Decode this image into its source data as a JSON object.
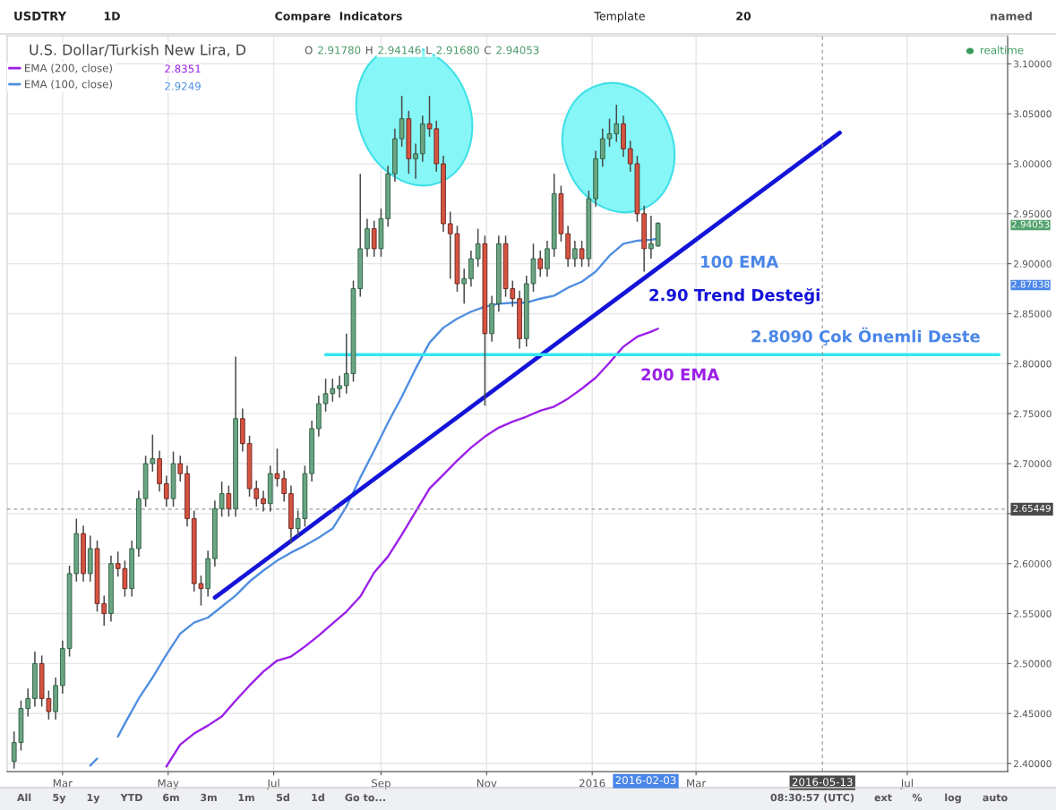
{
  "chart_data": {
    "type": "candlestick",
    "title": "U.S. Dollar/Turkish New Lira, D",
    "x": [
      "2015-02-01",
      "2015-02-05",
      "2015-02-09",
      "2015-02-13",
      "2015-02-17",
      "2015-02-21",
      "2015-02-25",
      "2015-03-01",
      "2015-03-05",
      "2015-03-09",
      "2015-03-13",
      "2015-03-17",
      "2015-03-21",
      "2015-03-25",
      "2015-03-29",
      "2015-04-02",
      "2015-04-06",
      "2015-04-10",
      "2015-04-14",
      "2015-04-18",
      "2015-04-22",
      "2015-04-26",
      "2015-04-30",
      "2015-05-04",
      "2015-05-08",
      "2015-05-12",
      "2015-05-16",
      "2015-05-20",
      "2015-05-24",
      "2015-05-28",
      "2015-06-01",
      "2015-06-05",
      "2015-06-09",
      "2015-06-13",
      "2015-06-17",
      "2015-06-21",
      "2015-06-25",
      "2015-06-29",
      "2015-07-03",
      "2015-07-07",
      "2015-07-11",
      "2015-07-15",
      "2015-07-19",
      "2015-07-23",
      "2015-07-27",
      "2015-07-31",
      "2015-08-04",
      "2015-08-08",
      "2015-08-12",
      "2015-08-16",
      "2015-08-20",
      "2015-08-24",
      "2015-08-28",
      "2015-09-01",
      "2015-09-05",
      "2015-09-09",
      "2015-09-13",
      "2015-09-17",
      "2015-09-21",
      "2015-09-25",
      "2015-09-29",
      "2015-10-03",
      "2015-10-07",
      "2015-10-11",
      "2015-10-15",
      "2015-10-19",
      "2015-10-23",
      "2015-10-27",
      "2015-10-31",
      "2015-11-04",
      "2015-11-08",
      "2015-11-12",
      "2015-11-16",
      "2015-11-20",
      "2015-11-24",
      "2015-11-28",
      "2015-12-02",
      "2015-12-06",
      "2015-12-10",
      "2015-12-14",
      "2015-12-18",
      "2015-12-22",
      "2015-12-26",
      "2015-12-30",
      "2016-01-03",
      "2016-01-07",
      "2016-01-11",
      "2016-01-15",
      "2016-01-19",
      "2016-01-23",
      "2016-01-27",
      "2016-01-31",
      "2016-02-04",
      "2016-02-08"
    ],
    "ohlc": [
      [
        2.402,
        2.432,
        2.395,
        2.421
      ],
      [
        2.421,
        2.463,
        2.413,
        2.455
      ],
      [
        2.455,
        2.475,
        2.447,
        2.465
      ],
      [
        2.465,
        2.512,
        2.457,
        2.5
      ],
      [
        2.5,
        2.508,
        2.457,
        2.465
      ],
      [
        2.465,
        2.473,
        2.444,
        2.452
      ],
      [
        2.452,
        2.486,
        2.444,
        2.478
      ],
      [
        2.478,
        2.523,
        2.47,
        2.515
      ],
      [
        2.515,
        2.598,
        2.507,
        2.59
      ],
      [
        2.59,
        2.645,
        2.582,
        2.63
      ],
      [
        2.63,
        2.638,
        2.582,
        2.59
      ],
      [
        2.59,
        2.628,
        2.582,
        2.615
      ],
      [
        2.615,
        2.623,
        2.552,
        2.56
      ],
      [
        2.56,
        2.568,
        2.538,
        2.55
      ],
      [
        2.55,
        2.608,
        2.542,
        2.6
      ],
      [
        2.6,
        2.612,
        2.587,
        2.595
      ],
      [
        2.595,
        2.603,
        2.567,
        2.575
      ],
      [
        2.575,
        2.623,
        2.567,
        2.615
      ],
      [
        2.615,
        2.673,
        2.607,
        2.665
      ],
      [
        2.665,
        2.708,
        2.657,
        2.7
      ],
      [
        2.7,
        2.729,
        2.692,
        2.705
      ],
      [
        2.705,
        2.713,
        2.672,
        2.68
      ],
      [
        2.68,
        2.688,
        2.657,
        2.665
      ],
      [
        2.665,
        2.712,
        2.657,
        2.7
      ],
      [
        2.7,
        2.708,
        2.682,
        2.69
      ],
      [
        2.69,
        2.698,
        2.637,
        2.645
      ],
      [
        2.645,
        2.653,
        2.572,
        2.58
      ],
      [
        2.58,
        2.588,
        2.558,
        2.575
      ],
      [
        2.575,
        2.613,
        2.567,
        2.605
      ],
      [
        2.605,
        2.663,
        2.597,
        2.655
      ],
      [
        2.655,
        2.682,
        2.647,
        2.67
      ],
      [
        2.67,
        2.678,
        2.647,
        2.655
      ],
      [
        2.655,
        2.807,
        2.647,
        2.745
      ],
      [
        2.745,
        2.755,
        2.712,
        2.72
      ],
      [
        2.72,
        2.728,
        2.667,
        2.675
      ],
      [
        2.675,
        2.683,
        2.657,
        2.665
      ],
      [
        2.665,
        2.673,
        2.652,
        2.66
      ],
      [
        2.66,
        2.698,
        2.652,
        2.69
      ],
      [
        2.69,
        2.715,
        2.677,
        2.685
      ],
      [
        2.685,
        2.693,
        2.662,
        2.67
      ],
      [
        2.67,
        2.678,
        2.62,
        2.635
      ],
      [
        2.635,
        2.653,
        2.627,
        2.645
      ],
      [
        2.645,
        2.698,
        2.637,
        2.69
      ],
      [
        2.69,
        2.743,
        2.682,
        2.735
      ],
      [
        2.735,
        2.768,
        2.727,
        2.76
      ],
      [
        2.76,
        2.785,
        2.752,
        2.77
      ],
      [
        2.77,
        2.785,
        2.762,
        2.775
      ],
      [
        2.775,
        2.788,
        2.766,
        2.778
      ],
      [
        2.778,
        2.83,
        2.77,
        2.79
      ],
      [
        2.79,
        2.883,
        2.782,
        2.875
      ],
      [
        2.875,
        2.99,
        2.867,
        2.915
      ],
      [
        2.915,
        2.945,
        2.907,
        2.935
      ],
      [
        2.935,
        2.943,
        2.907,
        2.915
      ],
      [
        2.915,
        2.955,
        2.907,
        2.945
      ],
      [
        2.945,
        2.998,
        2.937,
        2.99
      ],
      [
        2.99,
        3.035,
        2.982,
        3.025
      ],
      [
        3.025,
        3.068,
        3.017,
        3.045
      ],
      [
        3.045,
        3.053,
        2.99,
        3.005
      ],
      [
        3.005,
        3.02,
        2.985,
        3.01
      ],
      [
        3.01,
        3.048,
        3.002,
        3.04
      ],
      [
        3.04,
        3.068,
        3.027,
        3.035
      ],
      [
        3.035,
        3.043,
        2.992,
        3.0
      ],
      [
        3.0,
        3.008,
        2.932,
        2.94
      ],
      [
        2.94,
        2.952,
        2.885,
        2.93
      ],
      [
        2.93,
        2.938,
        2.872,
        2.88
      ],
      [
        2.88,
        2.895,
        2.86,
        2.885
      ],
      [
        2.885,
        2.913,
        2.877,
        2.905
      ],
      [
        2.905,
        2.935,
        2.897,
        2.92
      ],
      [
        2.92,
        2.928,
        2.758,
        2.83
      ],
      [
        2.83,
        2.868,
        2.822,
        2.86
      ],
      [
        2.86,
        2.928,
        2.852,
        2.92
      ],
      [
        2.92,
        2.928,
        2.867,
        2.875
      ],
      [
        2.875,
        2.883,
        2.857,
        2.865
      ],
      [
        2.865,
        2.873,
        2.815,
        2.825
      ],
      [
        2.825,
        2.888,
        2.817,
        2.88
      ],
      [
        2.88,
        2.92,
        2.872,
        2.905
      ],
      [
        2.905,
        2.913,
        2.887,
        2.895
      ],
      [
        2.895,
        2.923,
        2.887,
        2.915
      ],
      [
        2.915,
        2.99,
        2.907,
        2.97
      ],
      [
        2.97,
        2.978,
        2.922,
        2.93
      ],
      [
        2.93,
        2.938,
        2.897,
        2.905
      ],
      [
        2.905,
        2.923,
        2.897,
        2.915
      ],
      [
        2.915,
        2.923,
        2.897,
        2.905
      ],
      [
        2.905,
        2.973,
        2.897,
        2.965
      ],
      [
        2.965,
        3.013,
        2.957,
        3.005
      ],
      [
        3.005,
        3.035,
        2.997,
        3.025
      ],
      [
        3.025,
        3.045,
        3.017,
        3.03
      ],
      [
        3.03,
        3.059,
        3.022,
        3.04
      ],
      [
        3.04,
        3.048,
        3.007,
        3.015
      ],
      [
        3.015,
        3.023,
        2.992,
        3.0
      ],
      [
        3.0,
        3.008,
        2.942,
        2.95
      ],
      [
        2.95,
        2.958,
        2.892,
        2.915
      ],
      [
        2.915,
        2.948,
        2.905,
        2.92
      ],
      [
        2.9178,
        2.94146,
        2.9168,
        2.94053
      ]
    ],
    "series": [
      {
        "name": "EMA (200, close)",
        "type": "line",
        "color": "#9b1fe8",
        "x": [
          "2015-04-30",
          "2015-05-08",
          "2015-05-16",
          "2015-05-24",
          "2015-06-01",
          "2015-06-09",
          "2015-06-17",
          "2015-06-25",
          "2015-07-03",
          "2015-07-11",
          "2015-07-19",
          "2015-07-27",
          "2015-08-04",
          "2015-08-12",
          "2015-08-20",
          "2015-08-28",
          "2015-09-05",
          "2015-09-13",
          "2015-09-21",
          "2015-09-29",
          "2015-10-07",
          "2015-10-15",
          "2015-10-23",
          "2015-10-31",
          "2015-11-08",
          "2015-11-16",
          "2015-11-24",
          "2015-12-02",
          "2015-12-10",
          "2015-12-18",
          "2015-12-26",
          "2016-01-03",
          "2016-01-11",
          "2016-01-19",
          "2016-01-27",
          "2016-02-04",
          "2016-02-08"
        ],
        "values": [
          2.397,
          2.419,
          2.43,
          2.438,
          2.447,
          2.463,
          2.478,
          2.492,
          2.503,
          2.507,
          2.517,
          2.528,
          2.54,
          2.552,
          2.567,
          2.591,
          2.607,
          2.629,
          2.652,
          2.675,
          2.689,
          2.703,
          2.716,
          2.727,
          2.736,
          2.742,
          2.747,
          2.753,
          2.757,
          2.765,
          2.775,
          2.786,
          2.801,
          2.817,
          2.827,
          2.832,
          2.835
        ]
      },
      {
        "name": "EMA (100, close)",
        "type": "line",
        "color": "#4f8ee0",
        "x": [
          "2015-03-17",
          "2015-03-21",
          "2015-03-27",
          "2015-04-02",
          "2015-04-06",
          "2015-04-14",
          "2015-04-22",
          "2015-04-30",
          "2015-05-08",
          "2015-05-16",
          "2015-05-24",
          "2015-06-01",
          "2015-06-09",
          "2015-06-17",
          "2015-06-25",
          "2015-07-03",
          "2015-07-11",
          "2015-07-19",
          "2015-07-27",
          "2015-08-04",
          "2015-08-12",
          "2015-08-20",
          "2015-08-28",
          "2015-09-05",
          "2015-09-13",
          "2015-09-21",
          "2015-09-29",
          "2015-10-07",
          "2015-10-15",
          "2015-10-23",
          "2015-10-31",
          "2015-11-08",
          "2015-11-16",
          "2015-11-24",
          "2015-12-02",
          "2015-12-10",
          "2015-12-18",
          "2015-12-26",
          "2016-01-03",
          "2016-01-11",
          "2016-01-19",
          "2016-01-27",
          "2016-02-04",
          "2016-02-08"
        ],
        "values": [
          2.398,
          2.405,
          null,
          2.427,
          2.44,
          2.465,
          2.486,
          2.509,
          2.53,
          2.541,
          2.546,
          2.557,
          2.568,
          2.582,
          2.593,
          2.603,
          2.611,
          2.618,
          2.626,
          2.635,
          2.657,
          2.686,
          2.713,
          2.741,
          2.767,
          2.795,
          2.821,
          2.836,
          2.845,
          2.852,
          2.857,
          2.86,
          2.861,
          2.861,
          2.865,
          2.868,
          2.876,
          2.882,
          2.892,
          2.908,
          2.92,
          2.923,
          2.924,
          2.925
        ]
      },
      {
        "type": "line",
        "color": "#1414d8",
        "x": [
          "2015-05-28",
          "2016-05-23"
        ],
        "values": [
          2.566,
          3.031
        ]
      },
      {
        "type": "line",
        "color": "#33e6f0",
        "x": [
          "2015-07-31",
          "2016-08-23"
        ],
        "values": [
          2.809,
          2.809
        ]
      }
    ],
    "xlim": [
      "2015-01-28",
      "2016-08-28"
    ],
    "xticks": [
      {
        "value": "2015-03-01",
        "label": "Mar"
      },
      {
        "value": "2015-05-01",
        "label": "May"
      },
      {
        "value": "2015-07-01",
        "label": "Jul"
      },
      {
        "value": "2015-09-01",
        "label": "Sep"
      },
      {
        "value": "2015-11-01",
        "label": "Nov"
      },
      {
        "value": "2016-01-01",
        "label": "2016"
      },
      {
        "value": "2016-03-01",
        "label": "Mar"
      },
      {
        "value": "2016-07-01",
        "label": "Jul"
      }
    ],
    "ylim": [
      2.392,
      3.128
    ],
    "yticks": [
      {
        "value": 2.4,
        "label": "2.40000"
      },
      {
        "value": 2.45,
        "label": "2.45000"
      },
      {
        "value": 2.5,
        "label": "2.50000"
      },
      {
        "value": 2.55,
        "label": "2.55000"
      },
      {
        "value": 2.6,
        "label": "2.60000"
      },
      {
        "value": 2.65,
        "label": null
      },
      {
        "value": 2.7,
        "label": "2.70000"
      },
      {
        "value": 2.75,
        "label": "2.75000"
      },
      {
        "value": 2.8,
        "label": "2.80000"
      },
      {
        "value": 2.85,
        "label": "2.85000"
      },
      {
        "value": 2.9,
        "label": "2.90000"
      },
      {
        "value": 2.95,
        "label": "2.95000"
      },
      {
        "value": 3.0,
        "label": "3.00000"
      },
      {
        "value": 3.05,
        "label": "3.05000"
      },
      {
        "value": 3.1,
        "label": "3.10000"
      }
    ],
    "grid": true,
    "legend": "top left",
    "ref_lines": [
      {
        "axis": "x",
        "value": "2016-05-13",
        "label": "2016-05-13",
        "line_style": "dashed",
        "color": "#9a9a9a"
      },
      {
        "axis": "y",
        "value": 2.65449,
        "label": "2.65449",
        "line_style": "dashed",
        "color": "#9a9a9a"
      }
    ],
    "annotations": [
      "O 2.91780 H 2.94146 L 2.91680 C 2.94053",
      "2.8351",
      "2.9249",
      "realtime",
      "USDTRY",
      "1D",
      "Compare",
      "Indicators",
      "Template",
      "20",
      "named",
      "All",
      "5y",
      "1y",
      "YTD",
      "6m",
      "3m",
      "1m",
      "5d",
      "1d",
      "Go to...",
      "08:30:57 (UTC)",
      "ext",
      "%",
      "log",
      "auto",
      "100 EMA",
      "2.90 Trend Desteği",
      "2.8090 Çok Önemli Deste",
      "200 EMA",
      "2.94053",
      "2.87838",
      "2016-02-03"
    ]
  }
}
